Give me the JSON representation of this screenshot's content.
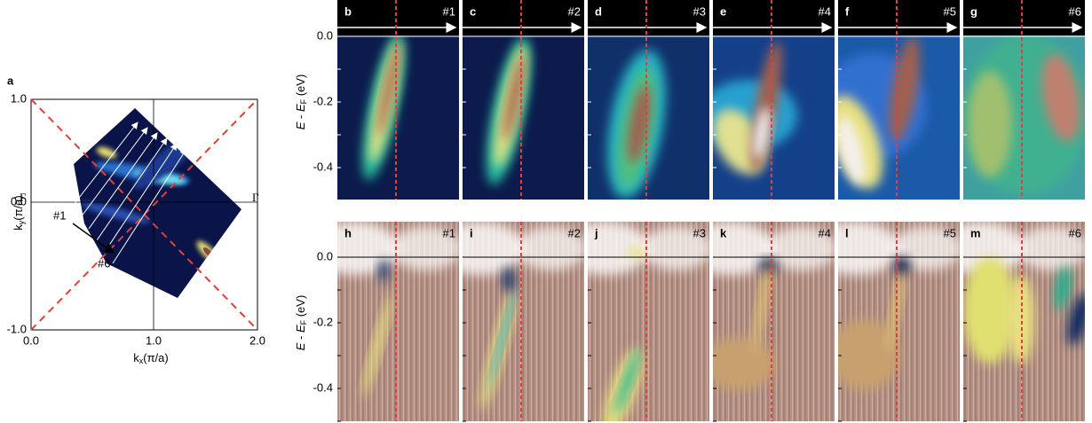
{
  "panel_a": {
    "label": "a",
    "y_label": [
      "k",
      "y",
      "(π/a)"
    ],
    "x_label": [
      "k",
      "x",
      "(π/a)"
    ],
    "y_ticks": [
      "1.0",
      "0.0",
      "-1.0"
    ],
    "x_ticks": [
      "0.0",
      "1.0",
      "2.0"
    ],
    "gamma": "Γ",
    "cut_first": "#1",
    "cut_last": "#6"
  },
  "energy_axis": {
    "label": [
      "E",
      " - ",
      "E",
      "F",
      " (eV)"
    ],
    "ticks": [
      "0.0",
      "-0.2",
      "-0.4"
    ]
  },
  "top_row": [
    {
      "label": "b",
      "cut": "#1"
    },
    {
      "label": "c",
      "cut": "#2"
    },
    {
      "label": "d",
      "cut": "#3"
    },
    {
      "label": "e",
      "cut": "#4"
    },
    {
      "label": "f",
      "cut": "#5"
    },
    {
      "label": "g",
      "cut": "#6"
    }
  ],
  "bottom_row": [
    {
      "label": "h",
      "cut": "#1"
    },
    {
      "label": "i",
      "cut": "#2"
    },
    {
      "label": "j",
      "cut": "#3"
    },
    {
      "label": "k",
      "cut": "#4"
    },
    {
      "label": "l",
      "cut": "#5"
    },
    {
      "label": "m",
      "cut": "#6"
    }
  ]
}
